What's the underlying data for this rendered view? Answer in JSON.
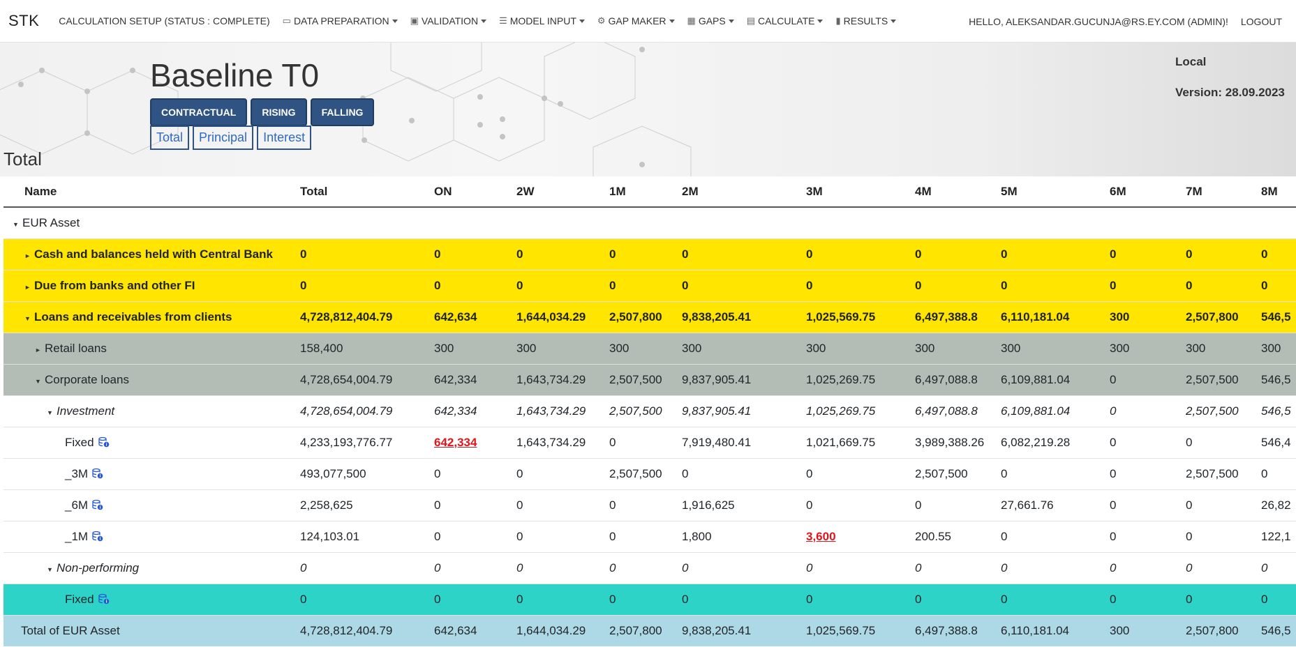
{
  "navbar": {
    "brand": "STK",
    "items": [
      {
        "label": "CALCULATION SETUP (STATUS : COMPLETE)",
        "icon": "",
        "caret": false
      },
      {
        "label": "DATA PREPARATION",
        "icon": "database-icon",
        "glyph": "▭",
        "caret": true
      },
      {
        "label": "VALIDATION",
        "icon": "clipboard-check-icon",
        "glyph": "▣",
        "caret": true
      },
      {
        "label": "MODEL INPUT",
        "icon": "list-icon",
        "glyph": "☰",
        "caret": true
      },
      {
        "label": "GAP MAKER",
        "icon": "gear-icon",
        "glyph": "⚙",
        "caret": true
      },
      {
        "label": "GAPS",
        "icon": "table-icon",
        "glyph": "▦",
        "caret": true
      },
      {
        "label": "CALCULATE",
        "icon": "calculator-icon",
        "glyph": "▤",
        "caret": true
      },
      {
        "label": "RESULTS",
        "icon": "bar-chart-icon",
        "glyph": "▮",
        "caret": true
      }
    ],
    "user": "HELLO, ALEKSANDAR.GUCUNJA@RS.EY.COM (ADMIN)!",
    "logout": "LOGOUT"
  },
  "header": {
    "title": "Baseline T0",
    "scenario_buttons": [
      "CONTRACTUAL",
      "RISING",
      "FALLING"
    ],
    "view_tabs": [
      "Total",
      "Principal",
      "Interest"
    ],
    "section": "Total",
    "environment": "Local",
    "version": "Version: 28.09.2023"
  },
  "table": {
    "columns": [
      "Name",
      "Total",
      "ON",
      "2W",
      "1M",
      "2M",
      "3M",
      "4M",
      "5M",
      "6M",
      "7M",
      "8M"
    ],
    "rows": [
      {
        "name": "EUR Asset",
        "level": 0,
        "toggle": "open",
        "style": "plain",
        "db": false,
        "cells": [
          "",
          "",
          "",
          "",
          "",
          "",
          "",
          "",
          "",
          "",
          ""
        ]
      },
      {
        "name": "Cash and balances held with Central Bank",
        "level": 1,
        "toggle": "closed",
        "style": "yellow",
        "db": false,
        "cells": [
          "0",
          "0",
          "0",
          "0",
          "0",
          "0",
          "0",
          "0",
          "0",
          "0",
          "0"
        ]
      },
      {
        "name": "Due from banks and other FI",
        "level": 1,
        "toggle": "closed",
        "style": "yellow",
        "db": false,
        "cells": [
          "0",
          "0",
          "0",
          "0",
          "0",
          "0",
          "0",
          "0",
          "0",
          "0",
          "0"
        ]
      },
      {
        "name": "Loans and receivables from clients",
        "level": 1,
        "toggle": "open",
        "style": "yellow",
        "db": false,
        "cells": [
          "4,728,812,404.79",
          "642,634",
          "1,644,034.29",
          "2,507,800",
          "9,838,205.41",
          "1,025,569.75",
          "6,497,388.8",
          "6,110,181.04",
          "300",
          "2,507,800",
          "546,5"
        ]
      },
      {
        "name": "Retail loans",
        "level": 2,
        "toggle": "closed",
        "style": "grey",
        "db": false,
        "cells": [
          "158,400",
          "300",
          "300",
          "300",
          "300",
          "300",
          "300",
          "300",
          "300",
          "300",
          "300"
        ]
      },
      {
        "name": "Corporate loans",
        "level": 2,
        "toggle": "open",
        "style": "grey",
        "db": false,
        "cells": [
          "4,728,654,004.79",
          "642,334",
          "1,643,734.29",
          "2,507,500",
          "9,837,905.41",
          "1,025,269.75",
          "6,497,088.8",
          "6,109,881.04",
          "0",
          "2,507,500",
          "546,5"
        ]
      },
      {
        "name": "Investment",
        "level": 3,
        "toggle": "open",
        "style": "italic",
        "db": false,
        "cells": [
          "4,728,654,004.79",
          "642,334",
          "1,643,734.29",
          "2,507,500",
          "9,837,905.41",
          "1,025,269.75",
          "6,497,088.8",
          "6,109,881.04",
          "0",
          "2,507,500",
          "546,5"
        ]
      },
      {
        "name": "Fixed",
        "level": 4,
        "toggle": "",
        "style": "plain",
        "db": true,
        "red_cells": [
          1
        ],
        "cells": [
          "4,233,193,776.77",
          "642,334",
          "1,643,734.29",
          "0",
          "7,919,480.41",
          "1,021,669.75",
          "3,989,388.26",
          "6,082,219.28",
          "0",
          "0",
          "546,4"
        ]
      },
      {
        "name": "_3M",
        "level": 4,
        "toggle": "",
        "style": "plain",
        "db": true,
        "cells": [
          "493,077,500",
          "0",
          "0",
          "2,507,500",
          "0",
          "0",
          "2,507,500",
          "0",
          "0",
          "2,507,500",
          "0"
        ]
      },
      {
        "name": "_6M",
        "level": 4,
        "toggle": "",
        "style": "plain",
        "db": true,
        "cells": [
          "2,258,625",
          "0",
          "0",
          "0",
          "1,916,625",
          "0",
          "0",
          "27,661.76",
          "0",
          "0",
          "26,82"
        ]
      },
      {
        "name": "_1M",
        "level": 4,
        "toggle": "",
        "style": "plain",
        "db": true,
        "red_cells": [
          5
        ],
        "cells": [
          "124,103.01",
          "0",
          "0",
          "0",
          "1,800",
          "3,600",
          "200.55",
          "0",
          "0",
          "0",
          "122,1"
        ]
      },
      {
        "name": "Non-performing",
        "level": 3,
        "toggle": "open",
        "style": "italic",
        "db": false,
        "cells": [
          "0",
          "0",
          "0",
          "0",
          "0",
          "0",
          "0",
          "0",
          "0",
          "0",
          "0"
        ]
      },
      {
        "name": "Fixed",
        "level": 4,
        "toggle": "",
        "style": "teal",
        "db": true,
        "cells": [
          "0",
          "0",
          "0",
          "0",
          "0",
          "0",
          "0",
          "0",
          "0",
          "0",
          "0"
        ]
      },
      {
        "name": "Total of EUR Asset",
        "level": 0,
        "toggle": "",
        "style": "total",
        "db": false,
        "cells": [
          "4,728,812,404.79",
          "642,634",
          "1,644,034.29",
          "2,507,800",
          "9,838,205.41",
          "1,025,569.75",
          "6,497,388.8",
          "6,110,181.04",
          "300",
          "2,507,800",
          "546,5"
        ]
      }
    ]
  }
}
